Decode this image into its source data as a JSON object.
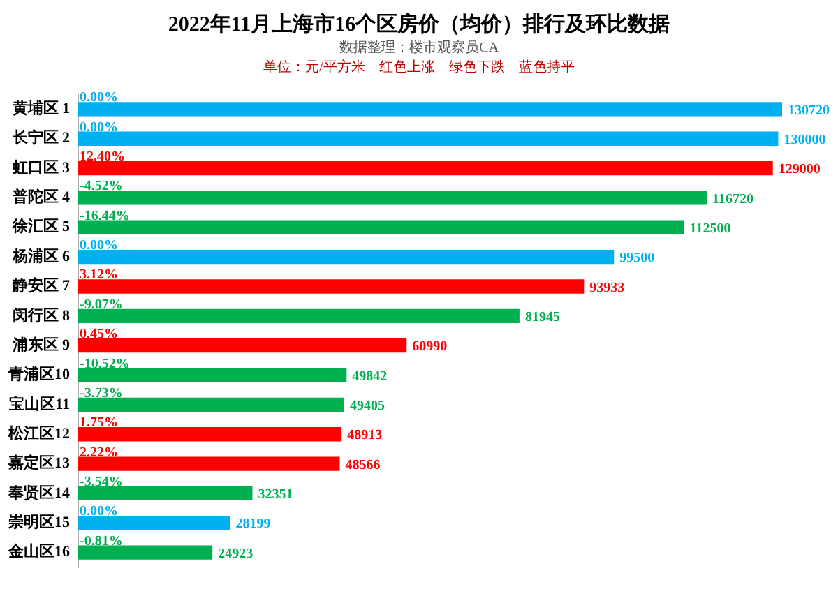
{
  "chart_data": {
    "type": "bar",
    "orientation": "horizontal",
    "title": "2022年11月上海市16个区房价（均价）排行及环比数据",
    "subtitle": "数据整理：楼市观察员CA",
    "annotations": [
      "单位：元/平方米　红色上涨　绿色下跌　蓝色持平",
      {
        "text": "0.00%",
        "y": "黄埔区 1"
      },
      {
        "text": "0.00%",
        "y": "长宁区 2"
      },
      {
        "text": "12.40%",
        "y": "虹口区 3"
      },
      {
        "text": "-4.52%",
        "y": "普陀区 4"
      },
      {
        "text": "-16.44%",
        "y": "徐汇区 5"
      },
      {
        "text": "0.00%",
        "y": "杨浦区 6"
      },
      {
        "text": "3.12%",
        "y": "静安区 7"
      },
      {
        "text": "-9.07%",
        "y": "闵行区 8"
      },
      {
        "text": "0.45%",
        "y": "浦东区 9"
      },
      {
        "text": "-10.52%",
        "y": "青浦区10"
      },
      {
        "text": "-3.73%",
        "y": "宝山区11"
      },
      {
        "text": "1.75%",
        "y": "松江区12"
      },
      {
        "text": "2.22%",
        "y": "嘉定区13"
      },
      {
        "text": "-3.54%",
        "y": "奉贤区14"
      },
      {
        "text": "0.00%",
        "y": "崇明区15"
      },
      {
        "text": "-0.81%",
        "y": "金山区16"
      }
    ],
    "categories": [
      "黄埔区 1",
      "长宁区 2",
      "虹口区 3",
      "普陀区 4",
      "徐汇区 5",
      "杨浦区 6",
      "静安区 7",
      "闵行区 8",
      "浦东区 9",
      "青浦区10",
      "宝山区11",
      "松江区12",
      "嘉定区13",
      "奉贤区14",
      "崇明区15",
      "金山区16"
    ],
    "values": [
      130720,
      130000,
      129000,
      116720,
      112500,
      99500,
      93933,
      81945,
      60990,
      49842,
      49405,
      48913,
      48566,
      32351,
      28199,
      24923
    ],
    "colors": [
      "#00b0f0",
      "#00b0f0",
      "#ff0000",
      "#00b050",
      "#00b050",
      "#00b0f0",
      "#ff0000",
      "#00b050",
      "#ff0000",
      "#00b050",
      "#00b050",
      "#ff0000",
      "#ff0000",
      "#00b050",
      "#00b0f0",
      "#00b050"
    ],
    "xlim": [
      0,
      130720
    ],
    "tick_labels": "y",
    "data_labels": true
  }
}
